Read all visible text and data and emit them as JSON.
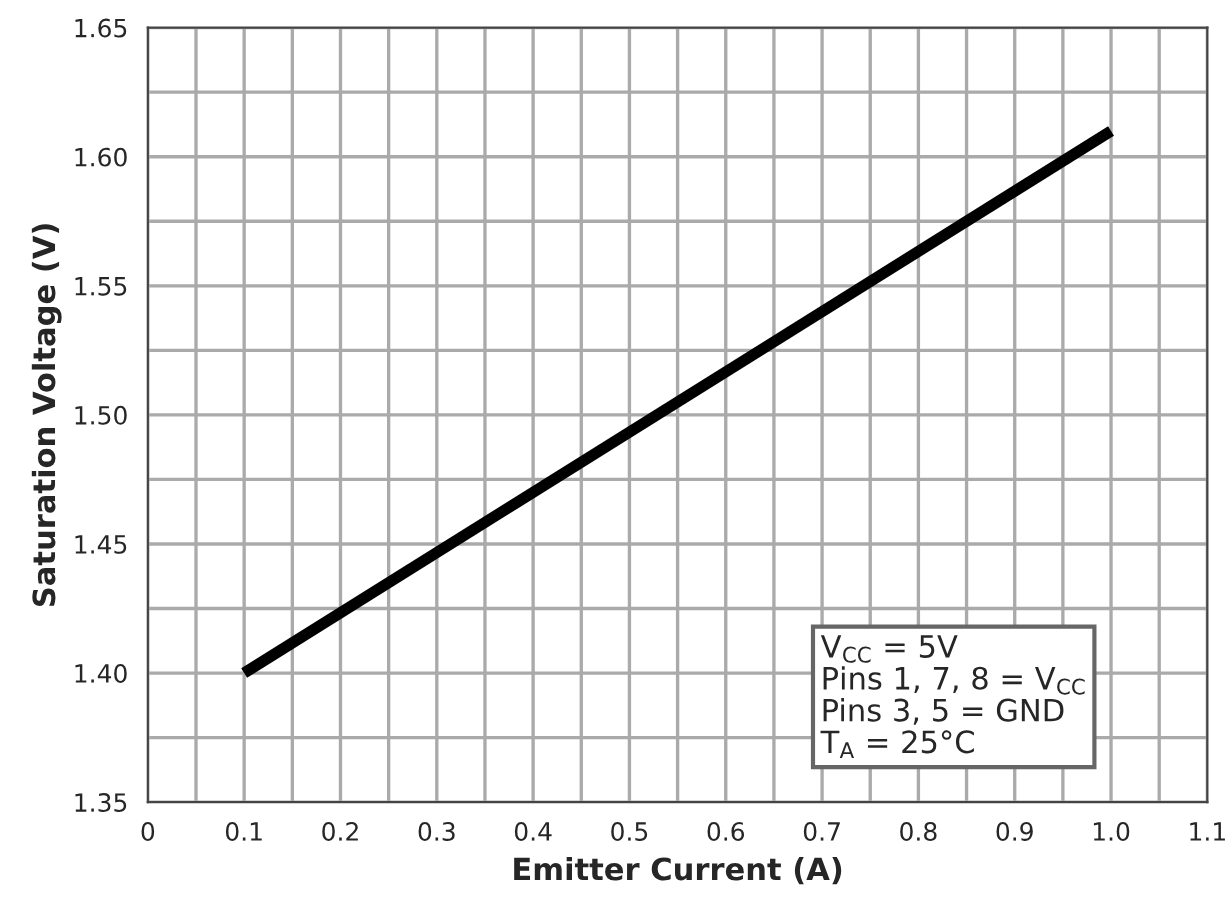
{
  "chart_data": {
    "type": "line",
    "xlabel": "Emitter Current (A)",
    "ylabel": "Saturation Voltage (V)",
    "x": [
      0.1,
      1.0
    ],
    "series": [
      {
        "color": "#000000",
        "values": [
          1.4,
          1.61
        ]
      }
    ],
    "xlim": [
      0,
      1.1
    ],
    "xticks": [
      0,
      0.1,
      0.2,
      0.3,
      0.4,
      0.5,
      0.6,
      0.7,
      0.8,
      0.9,
      {
        "value": 1.0,
        "label": "1.0"
      },
      1.1
    ],
    "ylim": [
      1.35,
      1.65
    ],
    "yticks": [
      1.35,
      {
        "value": 1.4,
        "label": "1.40"
      },
      1.45,
      {
        "value": 1.5,
        "label": "1.50"
      },
      1.55,
      {
        "value": 1.6,
        "label": "1.60"
      },
      1.65
    ],
    "grid": true,
    "line_style": "solid",
    "marker": "none",
    "annotations": [
      "V$_{CC}$ = 5V",
      "Pins 1, 7, 8 = V$_{CC}$",
      "Pins 3, 5 = GND",
      "T$_{A}$ = 25°C"
    ]
  }
}
